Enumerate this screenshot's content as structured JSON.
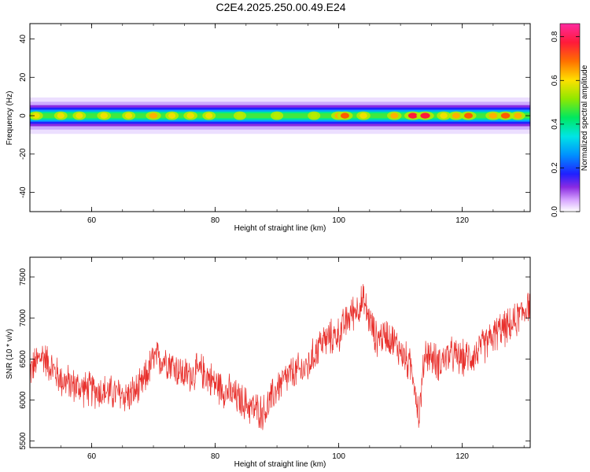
{
  "title": "C2E4.2025.250.00.49.E24",
  "chart_data": [
    {
      "type": "heatmap",
      "xlabel": "Height of straight line (km)",
      "ylabel": "Frequency (Hz)",
      "xlim": [
        50,
        131
      ],
      "ylim": [
        -50,
        48
      ],
      "xticks": [
        60,
        80,
        100,
        120
      ],
      "yticks": [
        -40,
        -20,
        0,
        20,
        40
      ],
      "band_center_hz": 0,
      "band_halfwidth_hz": 5,
      "hotspots": [
        {
          "x": 51,
          "v": 0.6
        },
        {
          "x": 55,
          "v": 0.55
        },
        {
          "x": 58,
          "v": 0.55
        },
        {
          "x": 62,
          "v": 0.6
        },
        {
          "x": 66,
          "v": 0.55
        },
        {
          "x": 70,
          "v": 0.7
        },
        {
          "x": 73,
          "v": 0.55
        },
        {
          "x": 76,
          "v": 0.6
        },
        {
          "x": 79,
          "v": 0.55
        },
        {
          "x": 84,
          "v": 0.5
        },
        {
          "x": 90,
          "v": 0.5
        },
        {
          "x": 96,
          "v": 0.5
        },
        {
          "x": 100,
          "v": 0.7
        },
        {
          "x": 101,
          "v": 0.75
        },
        {
          "x": 104,
          "v": 0.6
        },
        {
          "x": 109,
          "v": 0.65
        },
        {
          "x": 112,
          "v": 0.85
        },
        {
          "x": 114,
          "v": 0.9
        },
        {
          "x": 117,
          "v": 0.6
        },
        {
          "x": 119,
          "v": 0.65
        },
        {
          "x": 121,
          "v": 0.75
        },
        {
          "x": 125,
          "v": 0.7
        },
        {
          "x": 127,
          "v": 0.8
        },
        {
          "x": 129,
          "v": 0.65
        }
      ],
      "colorbar": {
        "label": "Normalized spectral amplitude",
        "range": [
          0.0,
          0.86
        ],
        "ticks": [
          0.0,
          0.2,
          0.4,
          0.6,
          0.8
        ]
      }
    },
    {
      "type": "line",
      "xlabel": "Height of straight line (km)",
      "ylabel": "SNR (10 * v/v)",
      "xlim": [
        50,
        131
      ],
      "ylim": [
        5420,
        7740
      ],
      "xticks": [
        60,
        80,
        100,
        120
      ],
      "yticks": [
        5500,
        6000,
        6500,
        7000,
        7500
      ],
      "color": "#e8302c",
      "trend": {
        "x": [
          50,
          52,
          55,
          58,
          62,
          66,
          68,
          70,
          72,
          75,
          78,
          80,
          82,
          84,
          86,
          88,
          90,
          92,
          95,
          97,
          100,
          102,
          104,
          106,
          108,
          110,
          112,
          113,
          114,
          116,
          118,
          120,
          122,
          124,
          126,
          128,
          130,
          131
        ],
        "y": [
          6350,
          6550,
          6250,
          6150,
          6100,
          6050,
          6150,
          6500,
          6500,
          6300,
          6350,
          6200,
          6100,
          6000,
          5900,
          5850,
          6150,
          6300,
          6400,
          6700,
          6800,
          7050,
          7200,
          6750,
          6800,
          6600,
          6350,
          5800,
          6600,
          6450,
          6550,
          6500,
          6550,
          6700,
          6850,
          6900,
          7100,
          7200
        ]
      },
      "noise_amplitude": 200,
      "sample_step_km": 0.06
    }
  ]
}
